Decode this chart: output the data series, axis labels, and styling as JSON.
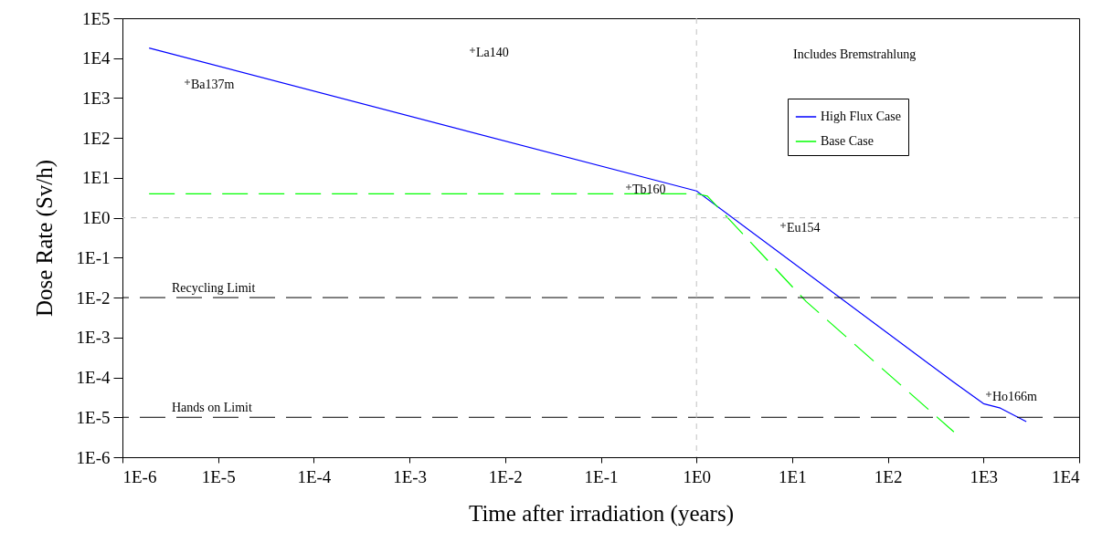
{
  "chart_data": {
    "type": "line",
    "xlabel": "Time after irradiation (years)",
    "ylabel": "Dose Rate (Sv/h)",
    "log": "xy",
    "grid": false,
    "legend": "top right",
    "xlim": [
      1e-06,
      10000.0
    ],
    "xticks": [
      {
        "value": 1e-06,
        "label": "1E-6"
      },
      {
        "value": 1e-05,
        "label": "1E-5"
      },
      {
        "value": 0.0001,
        "label": "1E-4"
      },
      {
        "value": 0.001,
        "label": "1E-3"
      },
      {
        "value": 0.01,
        "label": "1E-2"
      },
      {
        "value": 0.1,
        "label": "1E-1"
      },
      {
        "value": 1,
        "label": "1E0"
      },
      {
        "value": 10,
        "label": "1E1"
      },
      {
        "value": 100,
        "label": "1E2"
      },
      {
        "value": 1000,
        "label": "1E3"
      },
      {
        "value": 10000,
        "label": "1E4"
      }
    ],
    "ylim": [
      1e-06,
      100000.0
    ],
    "yticks": [
      {
        "value": 1e-06,
        "label": "1E-6"
      },
      {
        "value": 1e-05,
        "label": "1E-5"
      },
      {
        "value": 0.0001,
        "label": "1E-4"
      },
      {
        "value": 0.001,
        "label": "1E-3"
      },
      {
        "value": 0.01,
        "label": "1E-2"
      },
      {
        "value": 0.1,
        "label": "1E-1"
      },
      {
        "value": 1,
        "label": "1E0"
      },
      {
        "value": 10,
        "label": "1E1"
      },
      {
        "value": 100,
        "label": "1E2"
      },
      {
        "value": 1000,
        "label": "1E3"
      },
      {
        "value": 10000,
        "label": "1E4"
      },
      {
        "value": 100000,
        "label": "1E5"
      }
    ],
    "series": [
      {
        "name": "High Flux Case",
        "color": "#0000ff",
        "line_style": "solid",
        "x": [
          1.9e-06,
          1,
          480,
          1000,
          1500,
          2800
        ],
        "values": [
          18000.0,
          4.7,
          7.8e-05,
          2.2e-05,
          1.7e-05,
          7.8e-06
        ]
      },
      {
        "name": "Base Case",
        "color": "#00ff00",
        "line_style": "dashed",
        "x": [
          1.9e-06,
          1,
          1.3,
          14,
          490
        ],
        "values": [
          4,
          4,
          3.5,
          0.008,
          4.3e-06
        ]
      }
    ],
    "ref_lines": [
      {
        "axis": "y",
        "value": 0.01,
        "label": "Recycling Limit",
        "color": "#000000",
        "line_style": "dashed"
      },
      {
        "axis": "y",
        "value": 1e-05,
        "label": "Hands on Limit",
        "color": "#000000",
        "line_style": "dashed"
      },
      {
        "axis": "y",
        "value": 1,
        "color": "#c0c0c0",
        "line_style": "dotted"
      },
      {
        "axis": "x",
        "value": 1,
        "color": "#c0c0c0",
        "line_style": "dotted"
      }
    ],
    "annotations": [
      "Ba137m",
      "La140",
      "Tb160",
      "Eu154",
      "Ho166m",
      "Includes Bremstrahlung"
    ]
  }
}
